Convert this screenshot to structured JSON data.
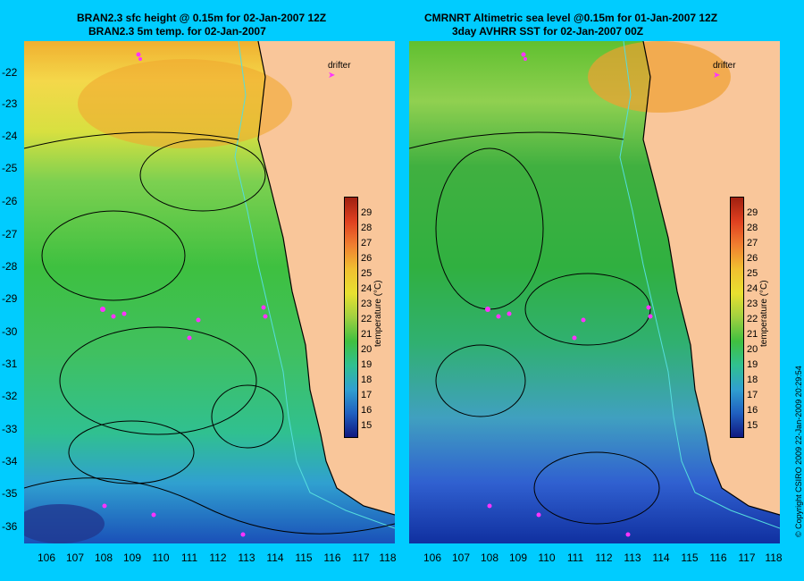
{
  "left_panel": {
    "title_line1": "BRAN2.3 sfc height @ 0.15m for 02-Jan-2007 12Z",
    "title_line2": "BRAN2.3 5m temp. for 02-Jan-2007",
    "drifter_label": "drifter",
    "colorbar_label": "temperature (°C)"
  },
  "right_panel": {
    "title_line1": "CMRNRT Altimetric sea level  @0.15m  for 01-Jan-2007 12Z",
    "title_line2": "3day AVHRR SST for 02-Jan-2007 00Z",
    "drifter_label": "drifter",
    "colorbar_label": "temperature (°C)"
  },
  "y_ticks": [
    "-22",
    "-23",
    "-24",
    "-25",
    "-26",
    "-27",
    "-28",
    "-29",
    "-30",
    "-31",
    "-32",
    "-33",
    "-34",
    "-35",
    "-36"
  ],
  "x_ticks": [
    "106",
    "107",
    "108",
    "109",
    "110",
    "111",
    "112",
    "113",
    "114",
    "115",
    "116",
    "117",
    "118"
  ],
  "colorbar_ticks": [
    "29",
    "28",
    "27",
    "26",
    "25",
    "24",
    "23",
    "22",
    "21",
    "20",
    "19",
    "18",
    "17",
    "16",
    "15"
  ],
  "copyright": "© Copyright CSIRO 2009  22-Jan-2009 20:29:54",
  "colors": {
    "background": "#00ccff",
    "land": "#f9c69a",
    "drifter": "#ff33ff",
    "bathymetry": "#55dddd"
  }
}
